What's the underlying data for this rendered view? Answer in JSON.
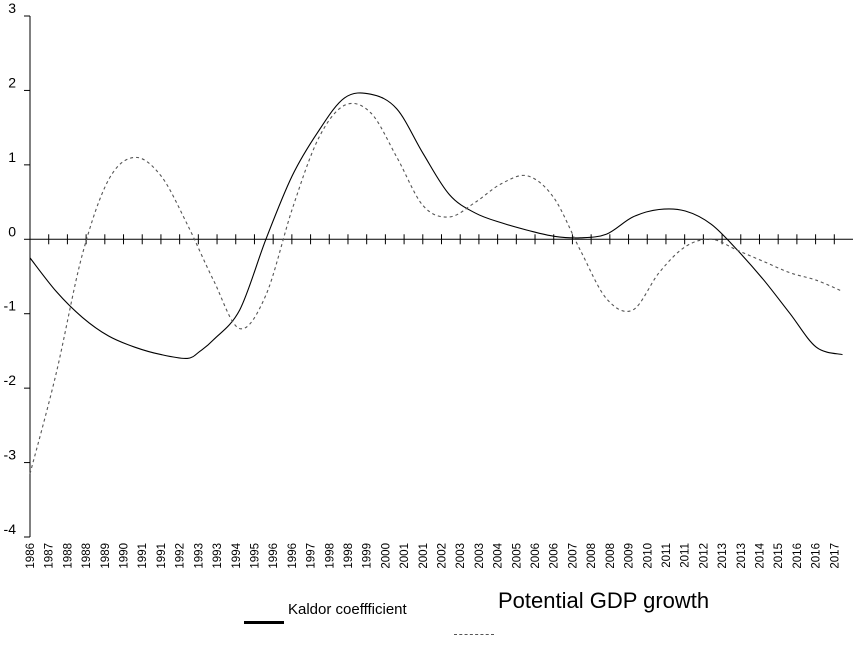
{
  "chart_data": {
    "type": "line",
    "x": [
      "1986",
      "1987",
      "1988",
      "1988",
      "1989",
      "1990",
      "1991",
      "1991",
      "1992",
      "1993",
      "1993",
      "1994",
      "1995",
      "1996",
      "1996",
      "1997",
      "1998",
      "1998",
      "1999",
      "2000",
      "2001",
      "2001",
      "2002",
      "2003",
      "2003",
      "2004",
      "2005",
      "2006",
      "2006",
      "2007",
      "2008",
      "2008",
      "2009",
      "2010",
      "2011",
      "2011",
      "2012",
      "2013",
      "2013",
      "2014",
      "2015",
      "2016",
      "2016",
      "2017"
    ],
    "ylim": [
      -4,
      3
    ],
    "yticks": [
      -4,
      -3,
      -2,
      -1,
      0,
      1,
      2,
      3
    ],
    "title": "",
    "xlabel": "",
    "ylabel": "",
    "grid": false,
    "legend": "bottom",
    "series": [
      {
        "name": "Kaldor coeffficient",
        "style": "solid",
        "color": "#000000",
        "x": [
          1986,
          1987,
          1988,
          1989,
          1990,
          1991,
          1992,
          1992.5,
          1993,
          1994,
          1995,
          1996,
          1997,
          1998,
          1999,
          2000,
          2001,
          2002,
          2003,
          2004,
          2005,
          2006,
          2007,
          2008,
          2009,
          2010,
          2011,
          2012,
          2013,
          2014,
          2015,
          2016,
          2017
        ],
        "y": [
          -0.25,
          -0.7,
          -1.05,
          -1.3,
          -1.45,
          -1.55,
          -1.6,
          -1.5,
          -1.35,
          -0.95,
          0.0,
          0.85,
          1.45,
          1.9,
          1.95,
          1.75,
          1.15,
          0.6,
          0.35,
          0.22,
          0.12,
          0.04,
          0.02,
          0.07,
          0.3,
          0.4,
          0.38,
          0.2,
          -0.15,
          -0.55,
          -1.0,
          -1.45,
          -1.55
        ]
      },
      {
        "name": "Potential GDP growth",
        "style": "dashed",
        "color": "#555555",
        "x": [
          1986,
          1987,
          1988,
          1989,
          1990,
          1991,
          1992,
          1993,
          1994,
          1995,
          1996,
          1997,
          1998,
          1999,
          2000,
          2001,
          2002,
          2003,
          2004,
          2005,
          2006,
          2007,
          2008,
          2009,
          2010,
          2011,
          2012,
          2013,
          2014,
          2015,
          2016,
          2017
        ],
        "y": [
          -3.15,
          -1.8,
          -0.2,
          0.8,
          1.1,
          0.85,
          0.2,
          -0.55,
          -1.2,
          -0.75,
          0.4,
          1.35,
          1.8,
          1.7,
          1.1,
          0.45,
          0.3,
          0.5,
          0.75,
          0.85,
          0.55,
          -0.15,
          -0.8,
          -0.95,
          -0.45,
          -0.1,
          0.0,
          -0.15,
          -0.3,
          -0.45,
          -0.55,
          -0.7
        ]
      }
    ]
  },
  "legend": {
    "kaldor_label": "Kaldor coeffficient",
    "gdp_label": "Potential GDP growth"
  }
}
